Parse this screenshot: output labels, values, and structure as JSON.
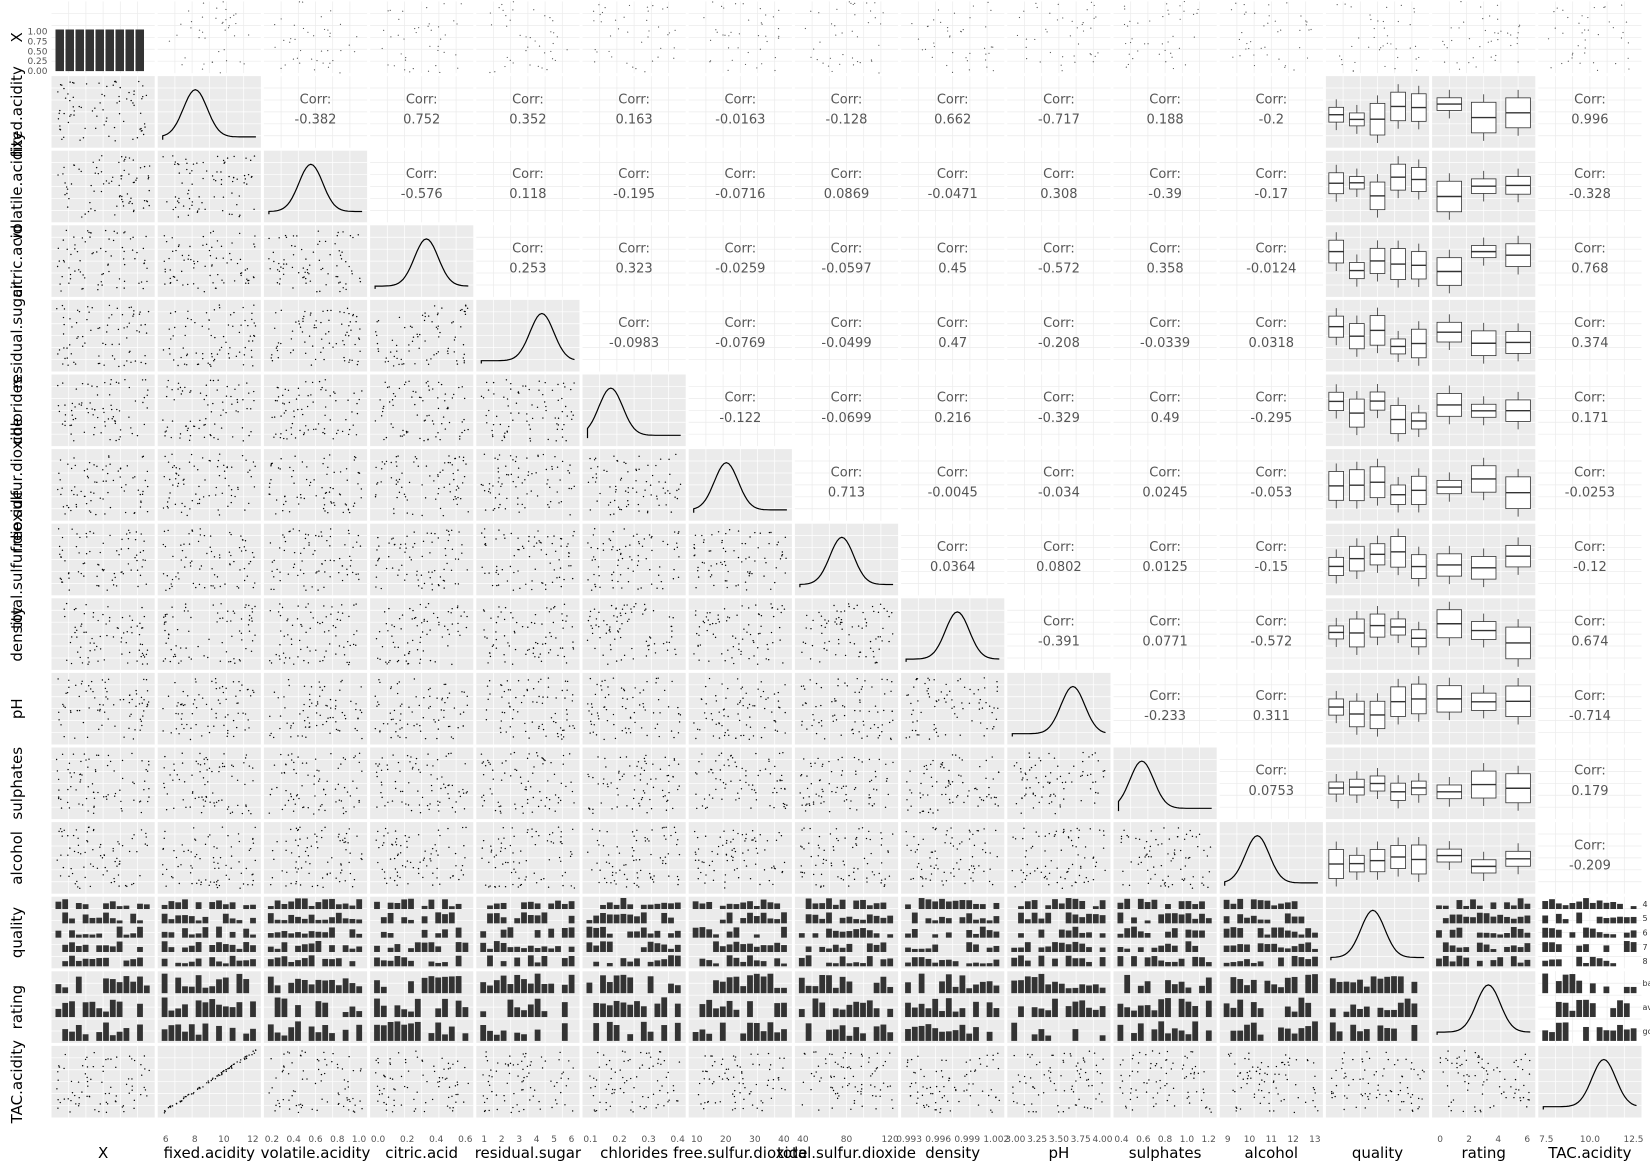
{
  "chart_data": {
    "type": "scatter",
    "title": "",
    "variables": [
      "X",
      "fixed.acidity",
      "volatile.acidity",
      "citric.acid",
      "residual.sugar",
      "chlorides",
      "free.sulfur.dioxide",
      "total.sulfur.dioxide",
      "density",
      "pH",
      "sulphates",
      "alcohol",
      "quality",
      "rating",
      "TAC.acidity"
    ],
    "row_labels": [
      "X",
      "fixed.acidity",
      "volatile.acidity",
      "citric.acid",
      "residual.sugar",
      "chlorides",
      "free.sulfur.dioxide",
      "total.sulfur.dioxide",
      "density",
      "pH",
      "sulphates",
      "alcohol",
      "quality",
      "rating",
      "TAC.acidity"
    ],
    "col_labels": [
      "X",
      "fixed.acidity",
      "volatile.acidity",
      "citric.acid",
      "residual.sugar",
      "chlorides",
      "free.sulfur.dioxide",
      "total.sulfur.dioxide",
      "density",
      "pH",
      "sulphates",
      "alcohol",
      "quality",
      "rating",
      "TAC.acidity"
    ],
    "corr_prefix": "Corr:",
    "correlations": [
      {
        "row": 1,
        "col": 2,
        "value": "-0.382"
      },
      {
        "row": 1,
        "col": 3,
        "value": "0.752"
      },
      {
        "row": 1,
        "col": 4,
        "value": "0.352"
      },
      {
        "row": 1,
        "col": 5,
        "value": "0.163"
      },
      {
        "row": 1,
        "col": 6,
        "value": "-0.0163"
      },
      {
        "row": 1,
        "col": 7,
        "value": "-0.128"
      },
      {
        "row": 1,
        "col": 8,
        "value": "0.662"
      },
      {
        "row": 1,
        "col": 9,
        "value": "-0.717"
      },
      {
        "row": 1,
        "col": 10,
        "value": "0.188"
      },
      {
        "row": 1,
        "col": 11,
        "value": "-0.2"
      },
      {
        "row": 1,
        "col": 14,
        "value": "0.996"
      },
      {
        "row": 2,
        "col": 3,
        "value": "-0.576"
      },
      {
        "row": 2,
        "col": 4,
        "value": "0.118"
      },
      {
        "row": 2,
        "col": 5,
        "value": "-0.195"
      },
      {
        "row": 2,
        "col": 6,
        "value": "-0.0716"
      },
      {
        "row": 2,
        "col": 7,
        "value": "0.0869"
      },
      {
        "row": 2,
        "col": 8,
        "value": "-0.0471"
      },
      {
        "row": 2,
        "col": 9,
        "value": "0.308"
      },
      {
        "row": 2,
        "col": 10,
        "value": "-0.39"
      },
      {
        "row": 2,
        "col": 11,
        "value": "-0.17"
      },
      {
        "row": 2,
        "col": 14,
        "value": "-0.328"
      },
      {
        "row": 3,
        "col": 4,
        "value": "0.253"
      },
      {
        "row": 3,
        "col": 5,
        "value": "0.323"
      },
      {
        "row": 3,
        "col": 6,
        "value": "-0.0259"
      },
      {
        "row": 3,
        "col": 7,
        "value": "-0.0597"
      },
      {
        "row": 3,
        "col": 8,
        "value": "0.45"
      },
      {
        "row": 3,
        "col": 9,
        "value": "-0.572"
      },
      {
        "row": 3,
        "col": 10,
        "value": "0.358"
      },
      {
        "row": 3,
        "col": 11,
        "value": "-0.0124"
      },
      {
        "row": 3,
        "col": 14,
        "value": "0.768"
      },
      {
        "row": 4,
        "col": 5,
        "value": "-0.0983"
      },
      {
        "row": 4,
        "col": 6,
        "value": "-0.0769"
      },
      {
        "row": 4,
        "col": 7,
        "value": "-0.0499"
      },
      {
        "row": 4,
        "col": 8,
        "value": "0.47"
      },
      {
        "row": 4,
        "col": 9,
        "value": "-0.208"
      },
      {
        "row": 4,
        "col": 10,
        "value": "-0.0339"
      },
      {
        "row": 4,
        "col": 11,
        "value": "0.0318"
      },
      {
        "row": 4,
        "col": 14,
        "value": "0.374"
      },
      {
        "row": 5,
        "col": 6,
        "value": "-0.122"
      },
      {
        "row": 5,
        "col": 7,
        "value": "-0.0699"
      },
      {
        "row": 5,
        "col": 8,
        "value": "0.216"
      },
      {
        "row": 5,
        "col": 9,
        "value": "-0.329"
      },
      {
        "row": 5,
        "col": 10,
        "value": "0.49"
      },
      {
        "row": 5,
        "col": 11,
        "value": "-0.295"
      },
      {
        "row": 5,
        "col": 14,
        "value": "0.171"
      },
      {
        "row": 6,
        "col": 7,
        "value": "0.713"
      },
      {
        "row": 6,
        "col": 8,
        "value": "-0.0045"
      },
      {
        "row": 6,
        "col": 9,
        "value": "-0.034"
      },
      {
        "row": 6,
        "col": 10,
        "value": "0.0245"
      },
      {
        "row": 6,
        "col": 11,
        "value": "-0.053"
      },
      {
        "row": 6,
        "col": 14,
        "value": "-0.0253"
      },
      {
        "row": 7,
        "col": 8,
        "value": "0.0364"
      },
      {
        "row": 7,
        "col": 9,
        "value": "0.0802"
      },
      {
        "row": 7,
        "col": 10,
        "value": "0.0125"
      },
      {
        "row": 7,
        "col": 11,
        "value": "-0.15"
      },
      {
        "row": 7,
        "col": 14,
        "value": "-0.12"
      },
      {
        "row": 8,
        "col": 9,
        "value": "-0.391"
      },
      {
        "row": 8,
        "col": 10,
        "value": "0.0771"
      },
      {
        "row": 8,
        "col": 11,
        "value": "-0.572"
      },
      {
        "row": 8,
        "col": 14,
        "value": "0.674"
      },
      {
        "row": 9,
        "col": 10,
        "value": "-0.233"
      },
      {
        "row": 9,
        "col": 11,
        "value": "0.311"
      },
      {
        "row": 9,
        "col": 14,
        "value": "-0.714"
      },
      {
        "row": 10,
        "col": 11,
        "value": "0.0753"
      },
      {
        "row": 10,
        "col": 14,
        "value": "0.179"
      },
      {
        "row": 11,
        "col": 14,
        "value": "-0.209"
      }
    ],
    "x_axis_ticks": [
      {
        "col": 1,
        "ticks": [
          "6",
          "8",
          "10",
          "12"
        ]
      },
      {
        "col": 2,
        "ticks": [
          "0.2",
          "0.4",
          "0.6",
          "0.8",
          "1.0"
        ]
      },
      {
        "col": 3,
        "ticks": [
          "0.0",
          "0.2",
          "0.4",
          "0.6"
        ]
      },
      {
        "col": 4,
        "ticks": [
          "1",
          "2",
          "3",
          "4",
          "5",
          "6"
        ]
      },
      {
        "col": 5,
        "ticks": [
          "0.1",
          "0.2",
          "0.3",
          "0.4"
        ]
      },
      {
        "col": 6,
        "ticks": [
          "10",
          "20",
          "30",
          "40"
        ]
      },
      {
        "col": 7,
        "ticks": [
          "40",
          "80",
          "120"
        ]
      },
      {
        "col": 8,
        "ticks": [
          "0.993",
          "0.996",
          "0.999",
          "1.002"
        ]
      },
      {
        "col": 9,
        "ticks": [
          "3.00",
          "3.25",
          "3.50",
          "3.75",
          "4.00"
        ]
      },
      {
        "col": 10,
        "ticks": [
          "0.4",
          "0.6",
          "0.8",
          "1.0",
          "1.2"
        ]
      },
      {
        "col": 11,
        "ticks": [
          "9",
          "10",
          "11",
          "12",
          "13"
        ]
      },
      {
        "col": 13,
        "ticks": [
          "0",
          "2",
          "4",
          "6"
        ]
      },
      {
        "col": 14,
        "ticks": [
          "7.5",
          "10.0",
          "12.5"
        ]
      }
    ],
    "quality_levels": [
      "4",
      "5",
      "6",
      "7",
      "8"
    ],
    "rating_levels": [
      "bad",
      "average",
      "good"
    ],
    "y_ticks_X": [
      "1.00",
      "0.75",
      "0.50",
      "0.25",
      "0.00"
    ]
  }
}
